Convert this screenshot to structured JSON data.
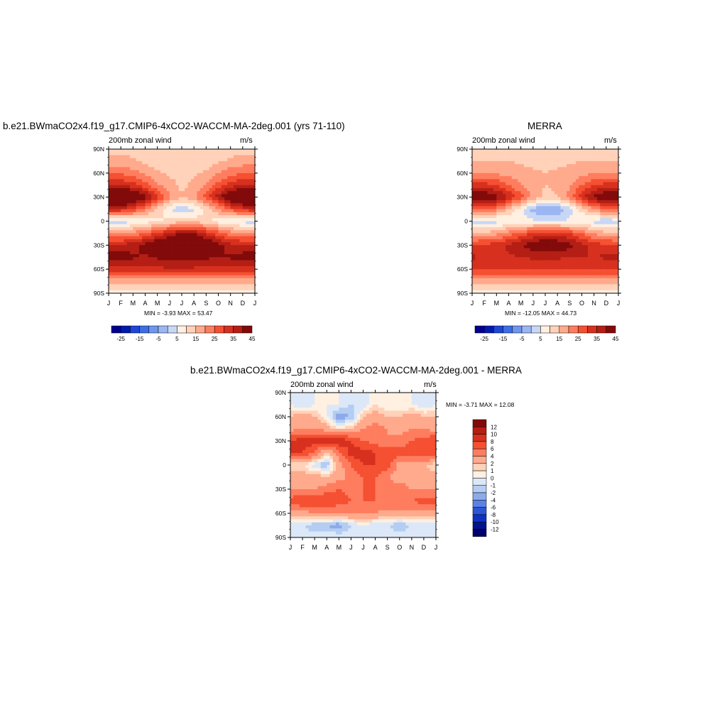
{
  "palette_main": [
    "#000090",
    "#0019b0",
    "#1e46d8",
    "#3c6ee6",
    "#6e96ef",
    "#9cb6f2",
    "#c8d7f5",
    "#fff0e1",
    "#ffd2b9",
    "#ffaa8c",
    "#ff7d5f",
    "#f55032",
    "#d7301e",
    "#b41e14",
    "#820a0a"
  ],
  "palette_diff": [
    "#820a0a",
    "#b41e14",
    "#d7301e",
    "#f55032",
    "#ff7d5f",
    "#ffaa8c",
    "#ffd2b9",
    "#fff0e1",
    "#dce8f8",
    "#b4cdf2",
    "#8caaeb",
    "#5a82e6",
    "#2d55d7",
    "#0f32c3",
    "#00148c",
    "#00006e"
  ],
  "chart_data": [
    {
      "id": "p1",
      "type": "heatmap",
      "title": "b.e21.BWmaCO2x4.f19_g17.CMIP6-4xCO2-WACCM-MA-2deg.001 (yrs 71-110)",
      "left_label": "200mb zonal wind",
      "right_label": "m/s",
      "x_ticks": [
        "J",
        "F",
        "M",
        "A",
        "M",
        "J",
        "J",
        "A",
        "S",
        "O",
        "N",
        "D",
        "J"
      ],
      "y_ticks": [
        "90N",
        "60N",
        "30N",
        "0",
        "30S",
        "60S",
        "90S"
      ],
      "stats": "MIN =  -3.93 MAX =  53.47",
      "colorbar_labels": [
        "-25",
        "-15",
        "-5",
        "5",
        "15",
        "25",
        "35",
        "45"
      ],
      "lat": [
        90,
        75,
        60,
        45,
        30,
        15,
        0,
        -15,
        -30,
        -45,
        -60,
        -75,
        -90
      ],
      "values": [
        [
          8,
          8,
          8,
          8,
          8,
          8,
          8,
          8,
          8,
          8,
          8,
          8,
          8
        ],
        [
          12,
          12,
          11,
          9,
          7,
          6,
          6,
          6,
          7,
          9,
          11,
          12,
          12
        ],
        [
          20,
          19,
          17,
          14,
          11,
          9,
          8,
          9,
          11,
          15,
          18,
          20,
          20
        ],
        [
          30,
          30,
          27,
          22,
          16,
          12,
          9,
          11,
          16,
          22,
          27,
          30,
          30
        ],
        [
          50,
          50,
          46,
          37,
          26,
          16,
          10,
          14,
          22,
          33,
          43,
          48,
          50
        ],
        [
          30,
          29,
          25,
          17,
          9,
          0,
          -3,
          -1,
          6,
          14,
          22,
          28,
          30
        ],
        [
          -3,
          -3,
          -1,
          2,
          4,
          6,
          8,
          8,
          6,
          3,
          0,
          -2,
          -3
        ],
        [
          14,
          14,
          16,
          20,
          25,
          31,
          35,
          34,
          28,
          22,
          17,
          15,
          14
        ],
        [
          30,
          31,
          33,
          37,
          42,
          47,
          51,
          50,
          44,
          37,
          32,
          30,
          30
        ],
        [
          38,
          38,
          36,
          34,
          36,
          38,
          37,
          37,
          36,
          35,
          36,
          38,
          38
        ],
        [
          28,
          28,
          28,
          28,
          29,
          29,
          29,
          29,
          29,
          28,
          28,
          28,
          28
        ],
        [
          13,
          13,
          13,
          13,
          13,
          12,
          12,
          12,
          13,
          13,
          13,
          13,
          13
        ],
        [
          3,
          3,
          3,
          3,
          3,
          3,
          3,
          3,
          3,
          3,
          3,
          3,
          3
        ]
      ]
    },
    {
      "id": "p2",
      "type": "heatmap",
      "title": "MERRA",
      "left_label": "200mb zonal wind",
      "right_label": "m/s",
      "x_ticks": [
        "J",
        "F",
        "M",
        "A",
        "M",
        "J",
        "J",
        "A",
        "S",
        "O",
        "N",
        "D",
        "J"
      ],
      "y_ticks": [
        "90N",
        "60N",
        "30N",
        "0",
        "30S",
        "60S",
        "90S"
      ],
      "stats": "MIN = -12.05 MAX =  44.73",
      "colorbar_labels": [
        "-25",
        "-15",
        "-5",
        "5",
        "15",
        "25",
        "35",
        "45"
      ],
      "lat": [
        90,
        75,
        60,
        45,
        30,
        15,
        0,
        -15,
        -30,
        -45,
        -60,
        -75,
        -90
      ],
      "values": [
        [
          7,
          7,
          7,
          7,
          7,
          7,
          7,
          7,
          7,
          7,
          7,
          7,
          7
        ],
        [
          10,
          10,
          10,
          10,
          9,
          8,
          8,
          8,
          9,
          10,
          10,
          10,
          10
        ],
        [
          14,
          14,
          14,
          13,
          12,
          11,
          10,
          11,
          12,
          14,
          14,
          14,
          14
        ],
        [
          27,
          27,
          25,
          20,
          15,
          12,
          10,
          11,
          14,
          20,
          25,
          27,
          27
        ],
        [
          42,
          41,
          37,
          30,
          22,
          14,
          8,
          10,
          18,
          28,
          37,
          41,
          42
        ],
        [
          22,
          21,
          17,
          10,
          2,
          -7,
          -11,
          -9,
          -2,
          7,
          15,
          20,
          22
        ],
        [
          -3,
          -3,
          -2,
          0,
          1,
          1,
          0,
          0,
          1,
          0,
          -2,
          -3,
          -3
        ],
        [
          10,
          11,
          13,
          17,
          21,
          25,
          27,
          27,
          24,
          19,
          14,
          11,
          10
        ],
        [
          25,
          26,
          28,
          31,
          35,
          39,
          41,
          40,
          37,
          32,
          28,
          26,
          25
        ],
        [
          31,
          30,
          29,
          29,
          30,
          31,
          31,
          31,
          30,
          30,
          30,
          31,
          31
        ],
        [
          25,
          25,
          25,
          25,
          25,
          25,
          25,
          25,
          25,
          25,
          25,
          25,
          25
        ],
        [
          13,
          13,
          13,
          13,
          13,
          12,
          12,
          12,
          13,
          13,
          13,
          13,
          13
        ],
        [
          3,
          3,
          3,
          3,
          3,
          3,
          3,
          3,
          3,
          3,
          3,
          3,
          3
        ]
      ]
    },
    {
      "id": "p3",
      "type": "heatmap",
      "title": "b.e21.BWmaCO2x4.f19_g17.CMIP6-4xCO2-WACCM-MA-2deg.001 - MERRA",
      "left_label": "200mb zonal wind",
      "right_label": "m/s",
      "x_ticks": [
        "J",
        "F",
        "M",
        "A",
        "M",
        "J",
        "J",
        "A",
        "S",
        "O",
        "N",
        "D",
        "J"
      ],
      "y_ticks": [
        "90N",
        "60N",
        "30N",
        "0",
        "30S",
        "60S",
        "90S"
      ],
      "stats": "MIN =  -3.71 MAX =  12.08",
      "colorbar_labels": [
        "12",
        "10",
        "8",
        "6",
        "4",
        "2",
        "1",
        "0",
        "-1",
        "-2",
        "-4",
        "-6",
        "-8",
        "-10",
        "-12"
      ],
      "lat": [
        90,
        75,
        60,
        45,
        30,
        15,
        0,
        -15,
        -30,
        -45,
        -60,
        -75,
        -90
      ],
      "values": [
        [
          0,
          0,
          0,
          0,
          0,
          0,
          0,
          0,
          0,
          0,
          0,
          0,
          0
        ],
        [
          0,
          -1,
          0,
          0,
          0,
          -1,
          -1,
          1,
          0,
          0,
          0,
          -1,
          0
        ],
        [
          2,
          3,
          2,
          0,
          -3,
          -2,
          2,
          3,
          2,
          2,
          3,
          2,
          2
        ],
        [
          3,
          4,
          4,
          3,
          1,
          2,
          4,
          5,
          4,
          3,
          4,
          4,
          3
        ],
        [
          8,
          9,
          9,
          9,
          10,
          8,
          6,
          5,
          4,
          5,
          6,
          7,
          8
        ],
        [
          8,
          8,
          6,
          1,
          5,
          9,
          9,
          8,
          8,
          7,
          7,
          8,
          8
        ],
        [
          1,
          1,
          -1,
          -2,
          3,
          6,
          8,
          8,
          7,
          3,
          3,
          2,
          1
        ],
        [
          3,
          3,
          3,
          2,
          3,
          5,
          6,
          6,
          4,
          3,
          3,
          3,
          3
        ],
        [
          4,
          4,
          4,
          5,
          6,
          5,
          6,
          6,
          5,
          5,
          4,
          4,
          4
        ],
        [
          7,
          8,
          8,
          8,
          7,
          6,
          6,
          6,
          6,
          6,
          6,
          7,
          7
        ],
        [
          3,
          3,
          4,
          4,
          4,
          4,
          4,
          4,
          3,
          3,
          3,
          3,
          3
        ],
        [
          -1,
          -1,
          -2,
          -2,
          -3,
          -1,
          0,
          -1,
          -1,
          -2,
          -1,
          -1,
          -1
        ],
        [
          0,
          0,
          0,
          0,
          0,
          0,
          0,
          0,
          0,
          0,
          0,
          0,
          0
        ]
      ]
    }
  ]
}
